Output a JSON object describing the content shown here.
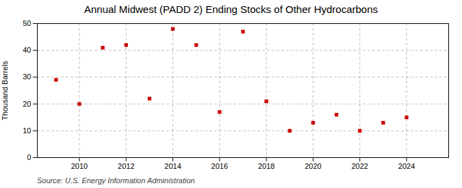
{
  "chart_data": {
    "type": "scatter",
    "title": "Annual Midwest (PADD 2) Ending Stocks of Other Hydrocarbons",
    "ylabel": "Thousand Barrels",
    "source": "Source: U.S. Energy Information Administration",
    "x": [
      2009,
      2010,
      2011,
      2012,
      2013,
      2014,
      2015,
      2016,
      2017,
      2018,
      2019,
      2020,
      2021,
      2022,
      2023,
      2024
    ],
    "values": [
      29,
      20,
      41,
      42,
      22,
      48,
      42,
      17,
      47,
      21,
      10,
      13,
      16,
      10,
      13,
      15
    ],
    "color": "#cc0000",
    "marker": "square",
    "xlim": [
      2008.2,
      2025.8
    ],
    "ylim": [
      0,
      50
    ],
    "xticks": [
      2010,
      2012,
      2014,
      2016,
      2018,
      2020,
      2022,
      2024
    ],
    "yticks": [
      0,
      10,
      20,
      30,
      40,
      50
    ],
    "grid": true
  }
}
